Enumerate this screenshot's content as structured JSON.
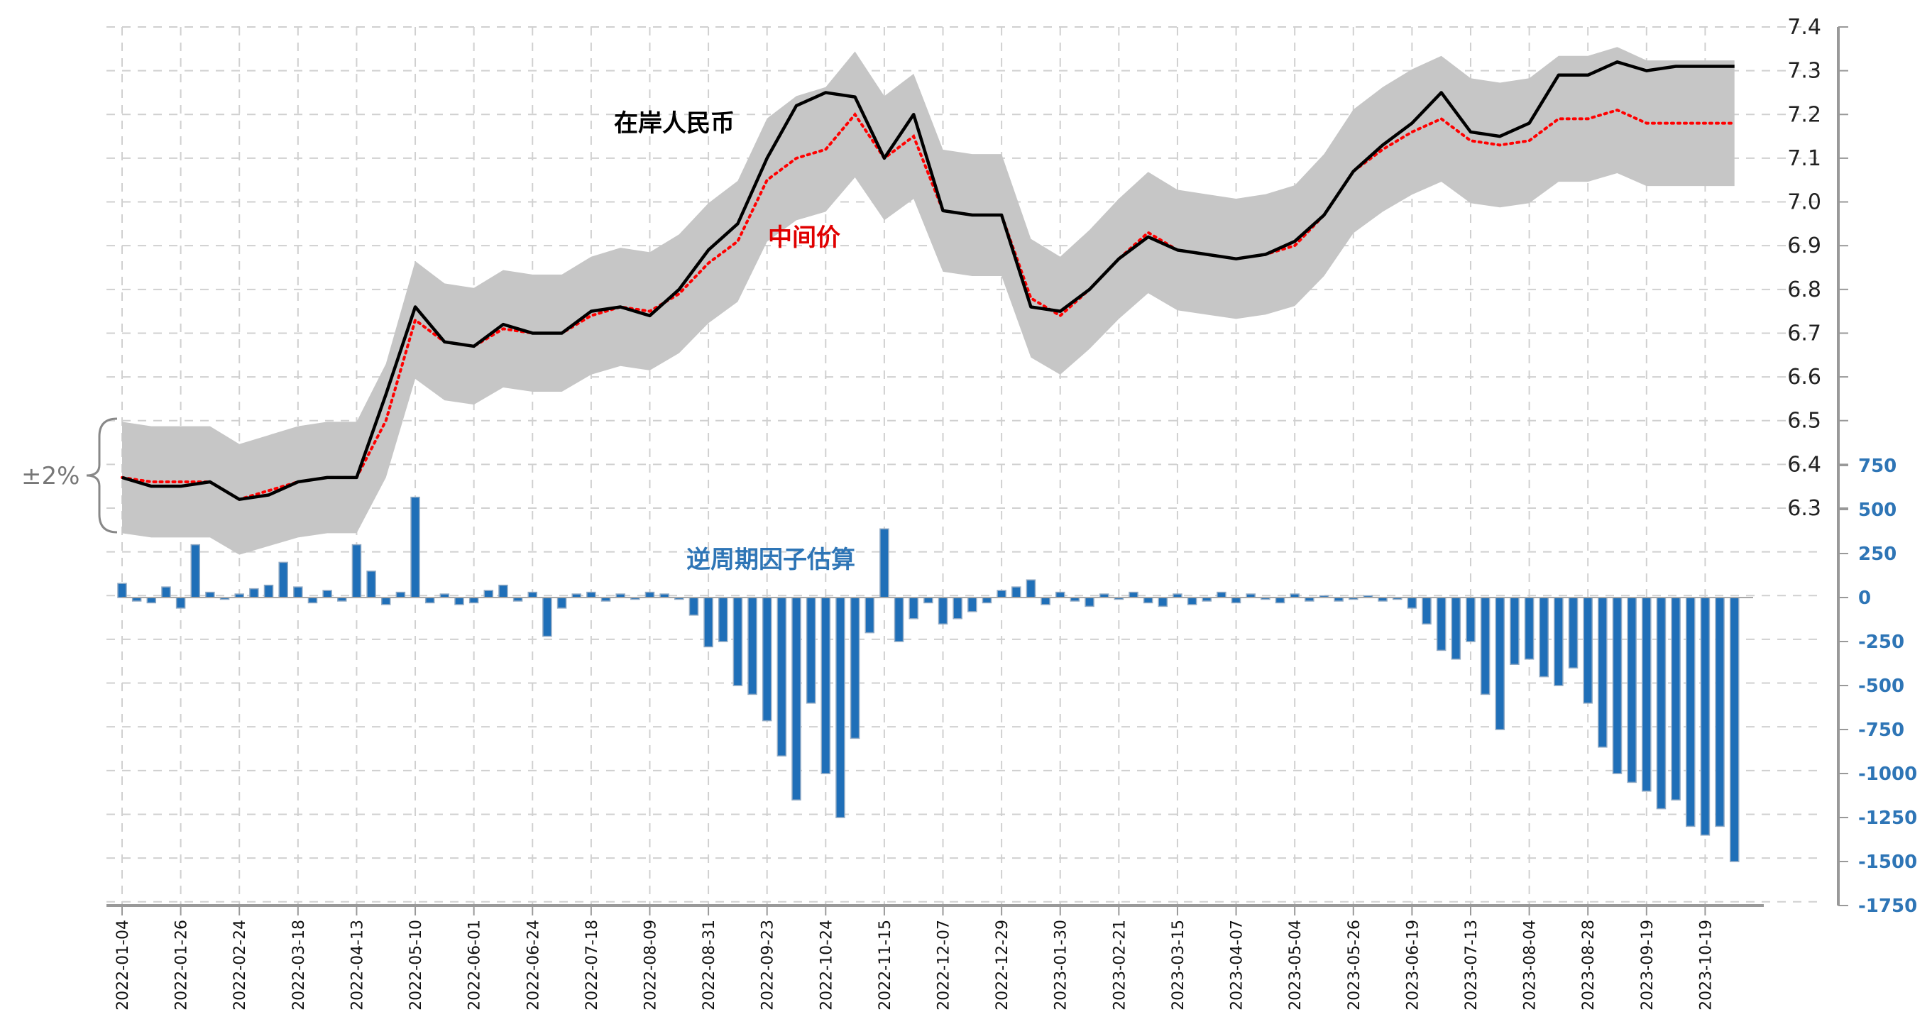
{
  "chart_data": {
    "type": "line+bar",
    "x_unit": "trading_day_index",
    "x_tick_step": 16,
    "x_tick_labels": [
      "2022-01-04",
      "2022-01-26",
      "2022-02-24",
      "2022-03-18",
      "2022-04-13",
      "2022-05-10",
      "2022-06-01",
      "2022-06-24",
      "2022-07-18",
      "2022-08-09",
      "2022-08-31",
      "2022-09-23",
      "2022-10-24",
      "2022-11-15",
      "2022-12-07",
      "2022-12-29",
      "2023-01-30",
      "2023-02-21",
      "2023-03-15",
      "2023-04-07",
      "2023-05-04",
      "2023-05-26",
      "2023-06-19",
      "2023-07-13",
      "2023-08-04",
      "2023-08-28",
      "2023-09-19",
      "2023-10-19"
    ],
    "left_axis": {
      "ylim": [
        6.3,
        7.4
      ],
      "ticks": [
        "7.4",
        "7.3",
        "7.2",
        "7.1",
        "7.0",
        "6.9",
        "6.8",
        "6.7",
        "6.6",
        "6.5",
        "6.4",
        "6.3"
      ]
    },
    "right_axis": {
      "ylim": [
        -1750,
        750
      ],
      "ticks": [
        "750",
        "500",
        "250",
        "0",
        "-250",
        "-500",
        "-750",
        "-1000",
        "-1250",
        "-1500",
        "-1750"
      ]
    },
    "line_step": 8,
    "series": [
      {
        "name": "在岸人民币",
        "color": "#000000",
        "style": "solid",
        "values": [
          6.37,
          6.35,
          6.35,
          6.36,
          6.32,
          6.33,
          6.36,
          6.37,
          6.37,
          6.56,
          6.76,
          6.68,
          6.67,
          6.72,
          6.7,
          6.7,
          6.75,
          6.76,
          6.74,
          6.8,
          6.89,
          6.95,
          7.1,
          7.22,
          7.25,
          7.24,
          7.1,
          7.2,
          6.98,
          6.97,
          6.97,
          6.76,
          6.75,
          6.8,
          6.87,
          6.92,
          6.89,
          6.88,
          6.87,
          6.88,
          6.91,
          6.97,
          7.07,
          7.13,
          7.18,
          7.25,
          7.16,
          7.15,
          7.18,
          7.29,
          7.29,
          7.32,
          7.3,
          7.31,
          7.31,
          7.31
        ]
      },
      {
        "name": "中间价",
        "color": "#ff0000",
        "style": "dotted",
        "values": [
          6.37,
          6.36,
          6.36,
          6.36,
          6.32,
          6.34,
          6.36,
          6.37,
          6.37,
          6.5,
          6.73,
          6.68,
          6.67,
          6.71,
          6.7,
          6.7,
          6.74,
          6.76,
          6.75,
          6.79,
          6.86,
          6.91,
          7.05,
          7.1,
          7.12,
          7.2,
          7.1,
          7.15,
          6.98,
          6.97,
          6.97,
          6.78,
          6.74,
          6.8,
          6.87,
          6.93,
          6.89,
          6.88,
          6.87,
          6.88,
          6.9,
          6.97,
          7.07,
          7.12,
          7.16,
          7.19,
          7.14,
          7.13,
          7.14,
          7.19,
          7.19,
          7.21,
          7.18,
          7.18,
          7.18,
          7.18
        ]
      }
    ],
    "band": {
      "label": "±2%",
      "band_pct": 2,
      "color": "#c6c6c6"
    },
    "bars": {
      "name": "逆周期因子估算",
      "color": "#1f6fb8",
      "step": 4,
      "values": [
        80,
        -20,
        -30,
        60,
        -60,
        300,
        30,
        -10,
        20,
        50,
        70,
        200,
        60,
        -30,
        40,
        -20,
        300,
        150,
        -40,
        30,
        570,
        -30,
        20,
        -40,
        -30,
        40,
        70,
        -20,
        30,
        -220,
        -60,
        20,
        30,
        -20,
        20,
        -10,
        30,
        20,
        -10,
        -100,
        -280,
        -250,
        -500,
        -550,
        -700,
        -900,
        -1150,
        -600,
        -1000,
        -1250,
        -800,
        -200,
        390,
        -250,
        -120,
        -30,
        -150,
        -120,
        -80,
        -30,
        40,
        60,
        100,
        -40,
        30,
        -20,
        -50,
        20,
        -10,
        30,
        -30,
        -50,
        20,
        -40,
        -20,
        30,
        -30,
        20,
        -10,
        -30,
        20,
        -20,
        10,
        -20,
        -10,
        10,
        -20,
        -10,
        -60,
        -150,
        -300,
        -350,
        -250,
        -550,
        -750,
        -380,
        -350,
        -450,
        -500,
        -400,
        -600,
        -850,
        -1000,
        -1050,
        -1100,
        -1200,
        -1150,
        -1300,
        -1350,
        -1300,
        -1500
      ]
    },
    "annotations": {
      "onshore": "在岸人民币",
      "mid": "中间价",
      "factor": "逆周期因子估算",
      "band": "±2%"
    },
    "grid": true
  }
}
